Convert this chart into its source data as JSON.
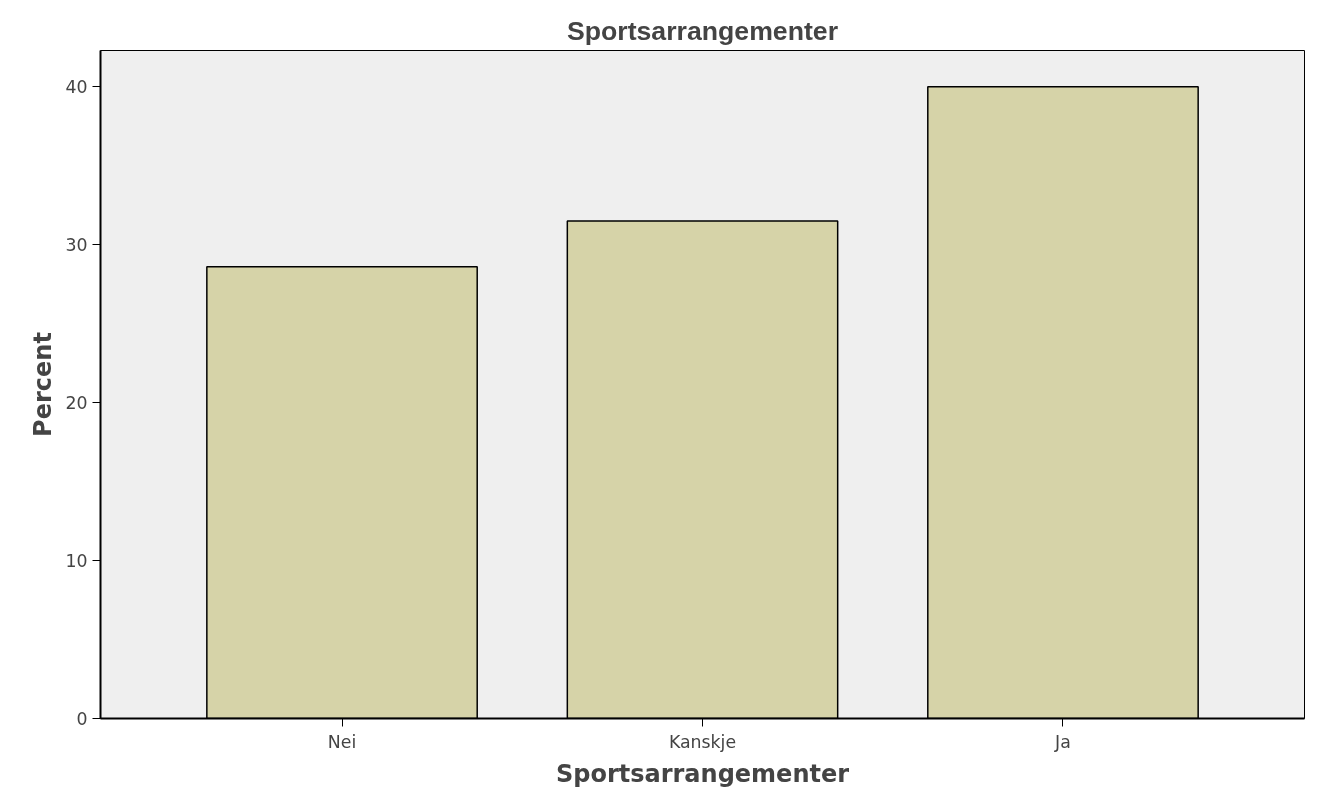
{
  "chart_data": {
    "type": "bar",
    "title": "Sportsarrangementer",
    "xlabel": "Sportsarrangementer",
    "ylabel": "Percent",
    "categories": [
      "Nei",
      "Kanskje",
      "Ja"
    ],
    "values": [
      28.6,
      31.5,
      40.0
    ],
    "color": "#d6d3a8",
    "ylim": [
      0,
      42.3
    ],
    "yticks": [
      0,
      10,
      20,
      30,
      40
    ],
    "grid": false
  }
}
